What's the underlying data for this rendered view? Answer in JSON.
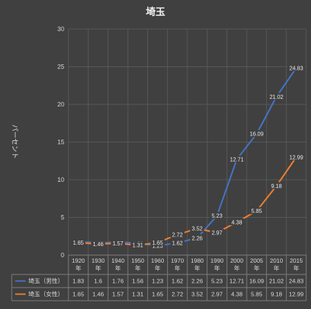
{
  "chart_data": {
    "type": "line",
    "title": "埼玉",
    "ylabel": "パーセント",
    "ylim": [
      0,
      30
    ],
    "yticks": [
      0,
      5,
      10,
      15,
      20,
      25,
      30
    ],
    "grid": true,
    "categories": [
      "1920\n年",
      "1930\n年",
      "1940\n年",
      "1950\n年",
      "1960\n年",
      "1970\n年",
      "1980\n年",
      "1990\n年",
      "2000\n年",
      "2005\n年",
      "2010\n年",
      "2015\n年"
    ],
    "series": [
      {
        "name": "埼玉（男性）",
        "color": "#4472c4",
        "values": [
          1.83,
          1.6,
          1.76,
          1.56,
          1.23,
          1.62,
          2.26,
          5.23,
          12.71,
          16.09,
          21.02,
          24.83
        ],
        "labels": [
          "1.83",
          "1.6",
          "1.76",
          "1.56",
          "1.23",
          "1.62",
          "2.26",
          "5.23",
          "12.71",
          "16.09",
          "21.02",
          "24.83"
        ]
      },
      {
        "name": "埼玉（女性）",
        "color": "#ed7d31",
        "values": [
          1.65,
          1.46,
          1.57,
          1.31,
          1.65,
          2.72,
          3.52,
          2.97,
          4.38,
          5.85,
          9.18,
          12.99
        ],
        "labels": [
          "1.65",
          "1.46",
          "1.57",
          "1.31",
          "1.65",
          "2.72",
          "3.52",
          "2.97",
          "4.38",
          "5.85",
          "9.18",
          "12.99"
        ]
      }
    ],
    "data_table": true
  }
}
